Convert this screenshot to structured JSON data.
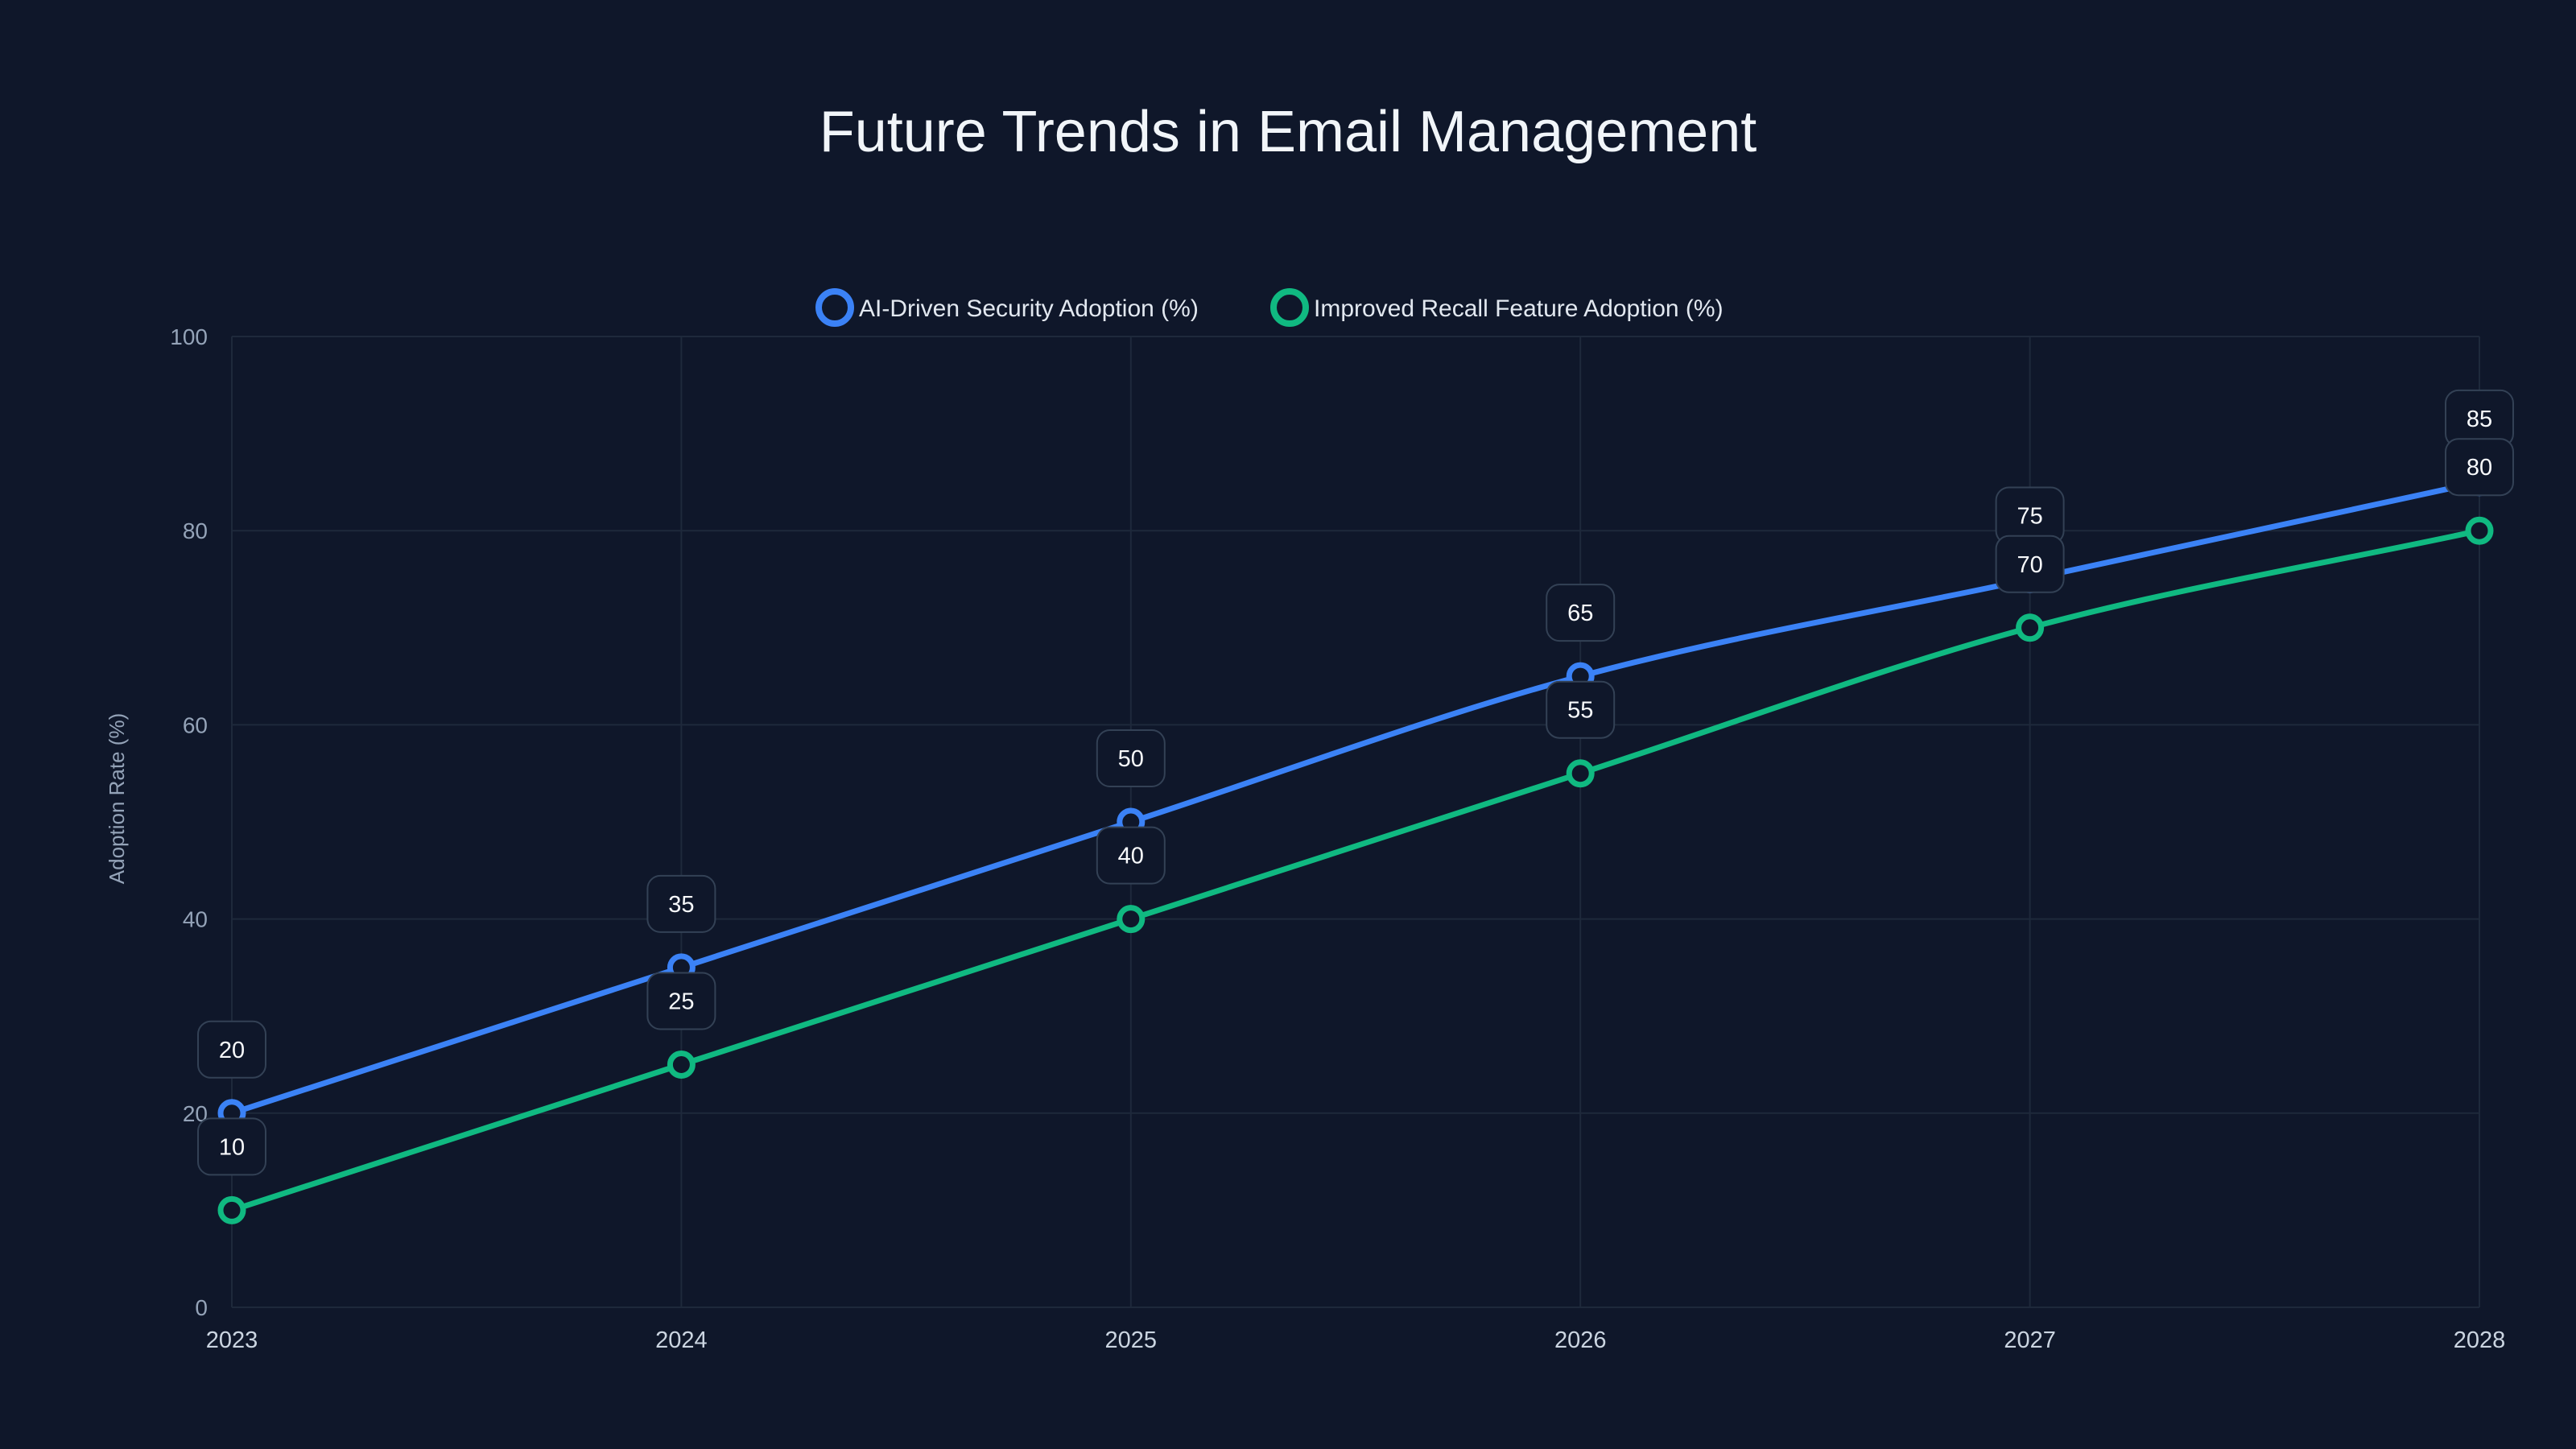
{
  "chart_data": {
    "type": "line",
    "title": "Future Trends in Email Management",
    "xlabel": "",
    "ylabel": "Adoption Rate (%)",
    "x": [
      "2023",
      "2024",
      "2025",
      "2026",
      "2027",
      "2028"
    ],
    "ylim": [
      0,
      100
    ],
    "yticks": [
      0,
      20,
      40,
      60,
      80,
      100
    ],
    "grid": true,
    "legend_position": "top-center",
    "series": [
      {
        "name": "AI-Driven Security Adoption (%)",
        "color": "#3b82f6",
        "values": [
          20,
          35,
          50,
          65,
          75,
          85
        ]
      },
      {
        "name": "Improved Recall Feature Adoption (%)",
        "color": "#10b981",
        "values": [
          10,
          25,
          40,
          55,
          70,
          80
        ]
      }
    ]
  }
}
